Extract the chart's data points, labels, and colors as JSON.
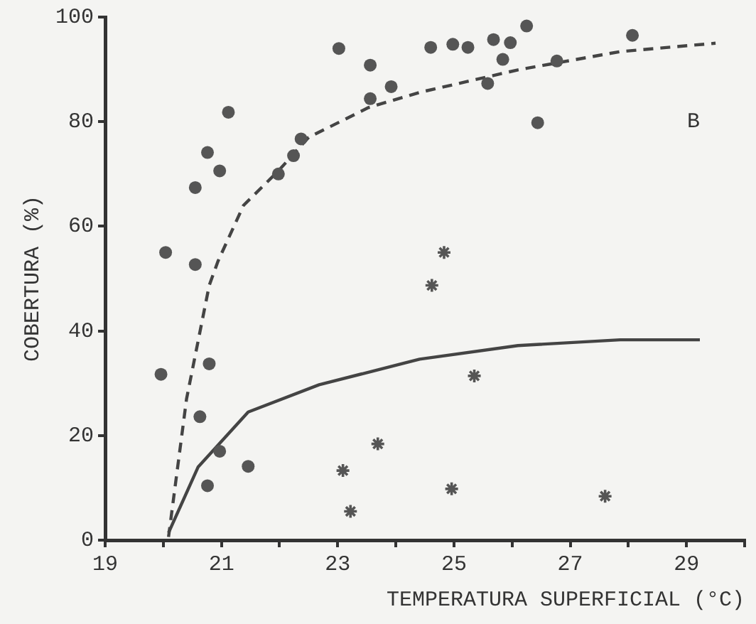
{
  "chart_data": {
    "type": "scatter",
    "xlabel": "TEMPERATURA SUPERFICIAL (°C)",
    "ylabel": "COBERTURA (%)",
    "annotations": [
      "B"
    ],
    "xlim": [
      19,
      30
    ],
    "ylim": [
      0,
      100
    ],
    "xticks": [
      19,
      {
        "value": 20,
        "label": null
      },
      21,
      {
        "value": 22,
        "label": null
      },
      23,
      {
        "value": 24,
        "label": null
      },
      25,
      {
        "value": 26,
        "label": null
      },
      27,
      {
        "value": 28,
        "label": null
      },
      29,
      {
        "value": 30,
        "label": null
      }
    ],
    "yticks": [
      0,
      20,
      40,
      60,
      80,
      100
    ],
    "grid": false,
    "legend": false,
    "series": [
      {
        "type": "scatter",
        "marker": "circle",
        "color": "#555555",
        "x": [
          20.04,
          20.55,
          20.55,
          20.76,
          20.97,
          21.12,
          21.98,
          22.24,
          22.37,
          23.02,
          23.56,
          23.56,
          23.92,
          24.6,
          24.98,
          25.24,
          25.68,
          25.97,
          25.84,
          26.25,
          25.58,
          26.77,
          26.44,
          28.07,
          19.96,
          20.79,
          20.63,
          20.97,
          20.76,
          21.46
        ],
        "values": [
          55,
          52.7,
          67.4,
          74.1,
          70.6,
          81.8,
          70,
          73.5,
          76.7,
          94,
          90.8,
          84.4,
          86.7,
          94.2,
          94.8,
          94.2,
          95.7,
          95.1,
          91.9,
          98.3,
          87.3,
          91.6,
          79.8,
          96.5,
          31.7,
          33.7,
          23.6,
          17,
          10.4,
          14.1
        ]
      },
      {
        "type": "scatter",
        "marker": "cross",
        "color": "#555555",
        "x": [
          23.09,
          23.22,
          23.69,
          24.62,
          24.83,
          25.35,
          24.96,
          27.6
        ],
        "values": [
          13.3,
          5.5,
          18.4,
          48.7,
          55,
          31.4,
          9.8,
          8.4
        ]
      },
      {
        "type": "line",
        "marker": "none",
        "line_style": "dashed",
        "color": "#444444",
        "x": [
          20.09,
          20.4,
          20.79,
          20.94,
          21.38,
          21.98,
          22.5,
          23.53,
          24.41,
          26.1,
          27.86,
          29.5
        ],
        "values": [
          0.6,
          27,
          48.7,
          53.3,
          64,
          70.6,
          77,
          82.7,
          85.6,
          89.9,
          93.4,
          95
        ]
      },
      {
        "type": "line",
        "marker": "none",
        "line_style": "solid",
        "color": "#444444",
        "x": [
          20.09,
          20.6,
          21.46,
          22.68,
          24.41,
          26.1,
          27.86,
          29.23
        ],
        "values": [
          1.4,
          14,
          24.5,
          29.7,
          34.6,
          37.2,
          38.3,
          38.3
        ]
      }
    ]
  }
}
